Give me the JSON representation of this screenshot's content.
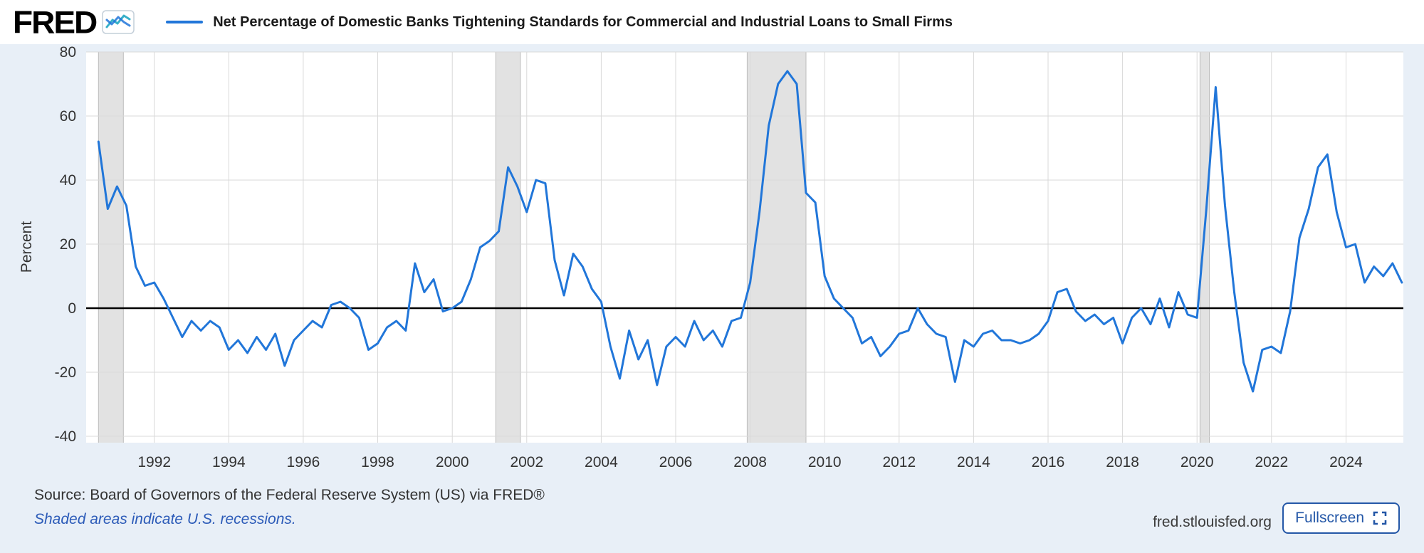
{
  "header": {
    "logo_text": "FRED",
    "series_legend": "Net Percentage of Domestic Banks Tightening Standards for Commercial and Industrial Loans to Small Firms"
  },
  "chart_data": {
    "type": "line",
    "title": "Net Percentage of Domestic Banks Tightening Standards for Commercial and Industrial Loans to Small Firms",
    "ylabel": "Percent",
    "xlabel": "",
    "x_range": [
      1990.17,
      2025.54
    ],
    "y_range": [
      -42,
      80
    ],
    "y_ticks": [
      80,
      60,
      40,
      20,
      0,
      -20,
      -40
    ],
    "x_ticks": [
      1992,
      1994,
      1996,
      1998,
      2000,
      2002,
      2004,
      2006,
      2008,
      2010,
      2012,
      2014,
      2016,
      2018,
      2020,
      2022,
      2024
    ],
    "grid": true,
    "legend_position": "top-left",
    "line_color": "#2176d9",
    "zero_line_color": "#000000",
    "recession_shading_color": "#e2e2e2",
    "recession_bands": [
      [
        1990.5,
        1991.17
      ],
      [
        2001.17,
        2001.83
      ],
      [
        2007.92,
        2009.5
      ],
      [
        2020.08,
        2020.33
      ]
    ],
    "series": [
      {
        "name": "Net Percentage of Domestic Banks Tightening Standards for Commercial and Industrial Loans to Small Firms",
        "points": [
          [
            1990.5,
            52
          ],
          [
            1990.75,
            31
          ],
          [
            1991,
            38
          ],
          [
            1991.25,
            32
          ],
          [
            1991.5,
            13
          ],
          [
            1991.75,
            7
          ],
          [
            1992,
            8
          ],
          [
            1992.25,
            3
          ],
          [
            1992.5,
            -3
          ],
          [
            1992.75,
            -9
          ],
          [
            1993,
            -4
          ],
          [
            1993.25,
            -7
          ],
          [
            1993.5,
            -4
          ],
          [
            1993.75,
            -6
          ],
          [
            1994,
            -13
          ],
          [
            1994.25,
            -10
          ],
          [
            1994.5,
            -14
          ],
          [
            1994.75,
            -9
          ],
          [
            1995,
            -13
          ],
          [
            1995.25,
            -8
          ],
          [
            1995.5,
            -18
          ],
          [
            1995.75,
            -10
          ],
          [
            1996,
            -7
          ],
          [
            1996.25,
            -4
          ],
          [
            1996.5,
            -6
          ],
          [
            1996.75,
            1
          ],
          [
            1997,
            2
          ],
          [
            1997.25,
            0
          ],
          [
            1997.5,
            -3
          ],
          [
            1997.75,
            -13
          ],
          [
            1998,
            -11
          ],
          [
            1998.25,
            -6
          ],
          [
            1998.5,
            -4
          ],
          [
            1998.75,
            -7
          ],
          [
            1999,
            14
          ],
          [
            1999.25,
            5
          ],
          [
            1999.5,
            9
          ],
          [
            1999.75,
            -1
          ],
          [
            2000,
            0
          ],
          [
            2000.25,
            2
          ],
          [
            2000.5,
            9
          ],
          [
            2000.75,
            19
          ],
          [
            2001,
            21
          ],
          [
            2001.25,
            24
          ],
          [
            2001.5,
            44
          ],
          [
            2001.75,
            38
          ],
          [
            2002,
            30
          ],
          [
            2002.25,
            40
          ],
          [
            2002.5,
            39
          ],
          [
            2002.75,
            15
          ],
          [
            2003,
            4
          ],
          [
            2003.25,
            17
          ],
          [
            2003.5,
            13
          ],
          [
            2003.75,
            6
          ],
          [
            2004,
            2
          ],
          [
            2004.25,
            -12
          ],
          [
            2004.5,
            -22
          ],
          [
            2004.75,
            -7
          ],
          [
            2005,
            -16
          ],
          [
            2005.25,
            -10
          ],
          [
            2005.5,
            -24
          ],
          [
            2005.75,
            -12
          ],
          [
            2006,
            -9
          ],
          [
            2006.25,
            -12
          ],
          [
            2006.5,
            -4
          ],
          [
            2006.75,
            -10
          ],
          [
            2007,
            -7
          ],
          [
            2007.25,
            -12
          ],
          [
            2007.5,
            -4
          ],
          [
            2007.75,
            -3
          ],
          [
            2008,
            8
          ],
          [
            2008.25,
            30
          ],
          [
            2008.5,
            57
          ],
          [
            2008.75,
            70
          ],
          [
            2009,
            74
          ],
          [
            2009.25,
            70
          ],
          [
            2009.5,
            36
          ],
          [
            2009.75,
            33
          ],
          [
            2010,
            10
          ],
          [
            2010.25,
            3
          ],
          [
            2010.5,
            0
          ],
          [
            2010.75,
            -3
          ],
          [
            2011,
            -11
          ],
          [
            2011.25,
            -9
          ],
          [
            2011.5,
            -15
          ],
          [
            2011.75,
            -12
          ],
          [
            2012,
            -8
          ],
          [
            2012.25,
            -7
          ],
          [
            2012.5,
            0
          ],
          [
            2012.75,
            -5
          ],
          [
            2013,
            -8
          ],
          [
            2013.25,
            -9
          ],
          [
            2013.5,
            -23
          ],
          [
            2013.75,
            -10
          ],
          [
            2014,
            -12
          ],
          [
            2014.25,
            -8
          ],
          [
            2014.5,
            -7
          ],
          [
            2014.75,
            -10
          ],
          [
            2015,
            -10
          ],
          [
            2015.25,
            -11
          ],
          [
            2015.5,
            -10
          ],
          [
            2015.75,
            -8
          ],
          [
            2016,
            -4
          ],
          [
            2016.25,
            5
          ],
          [
            2016.5,
            6
          ],
          [
            2016.75,
            -1
          ],
          [
            2017,
            -4
          ],
          [
            2017.25,
            -2
          ],
          [
            2017.5,
            -5
          ],
          [
            2017.75,
            -3
          ],
          [
            2018,
            -11
          ],
          [
            2018.25,
            -3
          ],
          [
            2018.5,
            0
          ],
          [
            2018.75,
            -5
          ],
          [
            2019,
            3
          ],
          [
            2019.25,
            -6
          ],
          [
            2019.5,
            5
          ],
          [
            2019.75,
            -2
          ],
          [
            2020,
            -3
          ],
          [
            2020.25,
            31
          ],
          [
            2020.5,
            69
          ],
          [
            2020.75,
            32
          ],
          [
            2021,
            5
          ],
          [
            2021.25,
            -17
          ],
          [
            2021.5,
            -26
          ],
          [
            2021.75,
            -13
          ],
          [
            2022,
            -12
          ],
          [
            2022.25,
            -14
          ],
          [
            2022.5,
            -1
          ],
          [
            2022.75,
            22
          ],
          [
            2023,
            31
          ],
          [
            2023.25,
            44
          ],
          [
            2023.5,
            48
          ],
          [
            2023.75,
            30
          ],
          [
            2024,
            19
          ],
          [
            2024.25,
            20
          ],
          [
            2024.5,
            8
          ],
          [
            2024.75,
            13
          ],
          [
            2025,
            10
          ],
          [
            2025.25,
            14
          ],
          [
            2025.5,
            8
          ]
        ]
      }
    ]
  },
  "footer": {
    "source_text": "Source: Board of Governors of the Federal Reserve System (US) via FRED®",
    "recession_note": "Shaded areas indicate U.S. recessions.",
    "site_url_text": "fred.stlouisfed.org",
    "fullscreen_button_label": "Fullscreen"
  },
  "colors": {
    "page_background": "#e8eff7",
    "header_background": "#ffffff",
    "plot_background": "#ffffff",
    "grid_color": "#d9d9d9",
    "tick_label_color": "#333333",
    "link_blue": "#2c5bb8",
    "button_blue": "#2457a7"
  }
}
